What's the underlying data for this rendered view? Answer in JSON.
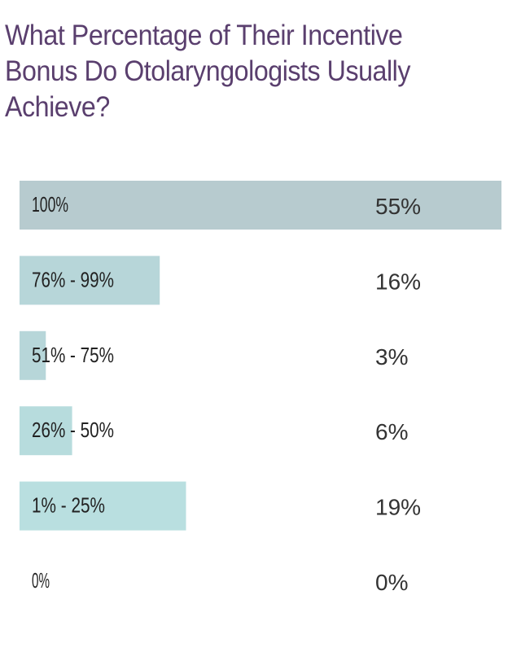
{
  "chart_data": {
    "type": "bar",
    "orientation": "horizontal",
    "title": "What Percentage of Their Incentive Bonus Do Otolaryngologists Usually Achieve?",
    "categories": [
      "100%",
      "76% - 99%",
      "51% - 75%",
      "26% - 50%",
      "1% - 25%",
      "0%"
    ],
    "values": [
      55,
      16,
      3,
      6,
      19,
      0
    ],
    "value_labels": [
      "55%",
      "16%",
      "3%",
      "6%",
      "19%",
      "0%"
    ],
    "value_max": 55,
    "bar_colors": [
      "#b7cbcf",
      "#b7d6d9",
      "#b7d6d9",
      "#b7dcdd",
      "#b9dfe0",
      "#b9dfe0"
    ],
    "title_color": "#5a3f6e",
    "grid": false,
    "legend": "none"
  }
}
